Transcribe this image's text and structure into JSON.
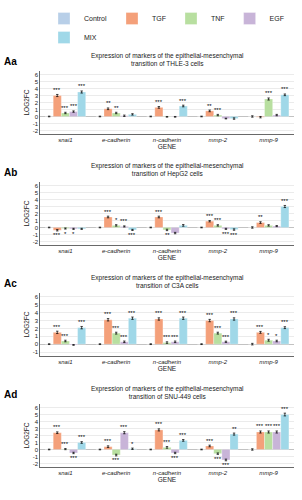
{
  "chart_data": [
    {
      "type": "bar",
      "label": "Aa",
      "title": "Expression of markers of the epithelial-mesenchymal transition of THLE-3 cells",
      "xlabel": "GENE",
      "ylabel": "LOG2FC",
      "categories": [
        "snai1",
        "e-cadherin",
        "n-cadherin",
        "mmp-2",
        "mmp-9"
      ],
      "series": [
        {
          "name": "Control",
          "color": "#b8cfe8",
          "values": [
            0,
            0,
            0,
            0,
            0
          ],
          "errors": [
            0.05,
            0.05,
            0.05,
            0.05,
            0.1
          ]
        },
        {
          "name": "TGF",
          "color": "#f4a07a",
          "values": [
            3.0,
            1.1,
            1.3,
            0.8,
            -0.1
          ],
          "errors": [
            0.15,
            0.12,
            0.12,
            0.12,
            0.1
          ],
          "annotations": [
            "***",
            "**",
            "***",
            "**",
            null
          ]
        },
        {
          "name": "TNF",
          "color": "#b8dfa0",
          "values": [
            0.5,
            0.5,
            -0.05,
            0.2,
            2.5
          ],
          "errors": [
            0.1,
            0.1,
            0.05,
            0.1,
            0.15
          ],
          "annotations": [
            "***",
            "**",
            null,
            "***",
            "***"
          ]
        },
        {
          "name": "EGF",
          "color": "#c8b4d8",
          "values": [
            0.7,
            0.1,
            -0.05,
            -0.3,
            0.2
          ],
          "errors": [
            0.1,
            0.1,
            0.05,
            0.05,
            0.1
          ],
          "annotations": [
            "***",
            null,
            null,
            null,
            null
          ]
        },
        {
          "name": "MIX",
          "color": "#a0d8e8",
          "values": [
            3.5,
            0.3,
            1.5,
            -0.3,
            3.1
          ],
          "errors": [
            0.15,
            0.1,
            0.12,
            0.1,
            0.12
          ],
          "annotations": [
            "***",
            null,
            "***",
            null,
            "***"
          ]
        }
      ],
      "ylim": [
        -2.5,
        6.5
      ],
      "yticks": [
        -2,
        -1,
        0,
        1,
        2,
        3,
        4,
        5,
        6
      ],
      "grid": true,
      "legend": "top"
    },
    {
      "type": "bar",
      "label": "Ab",
      "title": "Expression of markers of the epithelial-mesenchymal transition of HepG2 cells",
      "xlabel": "GENE",
      "ylabel": "LOG2FC",
      "categories": [
        "snai1",
        "e-cadherin",
        "n-cadherin",
        "mmp-2",
        "mmp-9"
      ],
      "series": [
        {
          "name": "Control",
          "color": "#b8cfe8",
          "values": [
            0,
            0,
            0,
            0,
            0
          ],
          "errors": [
            0.05,
            0.05,
            0.05,
            0.05,
            0.1
          ]
        },
        {
          "name": "TGF",
          "color": "#f4a07a",
          "values": [
            -0.4,
            1.5,
            1.5,
            0.9,
            0.7
          ],
          "errors": [
            0.1,
            0.12,
            0.12,
            0.1,
            0.12
          ],
          "annotations": [
            "***",
            "***",
            "***",
            "***",
            "**"
          ]
        },
        {
          "name": "TNF",
          "color": "#b8dfa0",
          "values": [
            -0.15,
            0.3,
            -0.35,
            0.3,
            0.3
          ],
          "errors": [
            0.08,
            0.1,
            0.1,
            0.1,
            0.1
          ],
          "annotations": [
            "*",
            "*",
            "**",
            "***",
            null
          ]
        },
        {
          "name": "EGF",
          "color": "#c8b4d8",
          "values": [
            -0.2,
            0.15,
            -0.8,
            -0.2,
            0.2
          ],
          "errors": [
            0.08,
            0.08,
            0.1,
            0.08,
            0.08
          ],
          "annotations": [
            "*",
            "***",
            null,
            "***",
            null
          ]
        },
        {
          "name": "MIX",
          "color": "#a0d8e8",
          "values": [
            -0.2,
            -0.35,
            0.3,
            -0.3,
            3.0
          ],
          "errors": [
            0.08,
            0.08,
            0.12,
            0.1,
            0.15
          ],
          "annotations": [
            null,
            "***",
            null,
            "***",
            "***"
          ]
        }
      ],
      "ylim": [
        -2.5,
        6.5
      ],
      "yticks": [
        -2,
        -1,
        0,
        1,
        2,
        3,
        4,
        5,
        6
      ],
      "grid": true,
      "legend": "top"
    },
    {
      "type": "bar",
      "label": "Ac",
      "title": "Expression of markers of the epithelial-mesenchymal transition of C3A cells",
      "xlabel": "GENE",
      "ylabel": "LOG2FC",
      "categories": [
        "snai1",
        "e-cadherin",
        "n-cadherin",
        "mmp-2",
        "mmp-9"
      ],
      "series": [
        {
          "name": "Control",
          "color": "#b8cfe8",
          "values": [
            0,
            0,
            0,
            0,
            0
          ],
          "errors": [
            0.05,
            0.05,
            0.05,
            0.05,
            0.1
          ]
        },
        {
          "name": "TGF",
          "color": "#f4a07a",
          "values": [
            1.5,
            3.1,
            3.2,
            3.0,
            1.5
          ],
          "errors": [
            0.15,
            0.15,
            0.15,
            0.15,
            0.12
          ],
          "annotations": [
            "***",
            "***",
            "***",
            "***",
            "***"
          ]
        },
        {
          "name": "TNF",
          "color": "#b8dfa0",
          "values": [
            0.4,
            1.4,
            0.2,
            1.4,
            0.5
          ],
          "errors": [
            0.1,
            0.12,
            0.1,
            0.12,
            0.12
          ],
          "annotations": [
            "***",
            "***",
            "***",
            "***",
            "*"
          ]
        },
        {
          "name": "EGF",
          "color": "#c8b4d8",
          "values": [
            -0.1,
            0.3,
            0.3,
            0.3,
            0.4
          ],
          "errors": [
            0.05,
            0.1,
            0.1,
            0.08,
            0.1
          ],
          "annotations": [
            null,
            "***",
            "***",
            "***",
            "*"
          ]
        },
        {
          "name": "MIX",
          "color": "#a0d8e8",
          "values": [
            2.1,
            3.3,
            3.3,
            3.2,
            2.1
          ],
          "errors": [
            0.15,
            0.15,
            0.15,
            0.15,
            0.12
          ],
          "annotations": [
            "***",
            "***",
            "***",
            "***",
            "***"
          ]
        }
      ],
      "ylim": [
        -1.5,
        6.5
      ],
      "yticks": [
        -1,
        0,
        1,
        2,
        3,
        4,
        5,
        6
      ],
      "grid": true,
      "legend": "top"
    },
    {
      "type": "bar",
      "label": "Ad",
      "title": "Expression of markers of the epithelial-mesenchymal transition of SNU-449 cells",
      "xlabel": "GENE",
      "ylabel": "LOG2FC",
      "categories": [
        "snai1",
        "e-cadherin",
        "n-cadherin",
        "mmp-2",
        "mmp-9"
      ],
      "series": [
        {
          "name": "Control",
          "color": "#b8cfe8",
          "values": [
            0,
            0,
            0,
            0,
            0
          ],
          "errors": [
            0.05,
            0.05,
            0.05,
            0.05,
            0.1
          ]
        },
        {
          "name": "TGF",
          "color": "#f4a07a",
          "values": [
            2.4,
            0.4,
            2.8,
            0.5,
            2.5
          ],
          "errors": [
            0.12,
            0.12,
            0.15,
            0.12,
            0.15
          ],
          "annotations": [
            "***",
            "***",
            "***",
            "***",
            "***"
          ]
        },
        {
          "name": "TNF",
          "color": "#b8dfa0",
          "values": [
            0.05,
            -0.8,
            0.3,
            -0.6,
            2.5
          ],
          "errors": [
            0.08,
            0.12,
            0.12,
            0.1,
            0.15
          ],
          "annotations": [
            "***",
            "***",
            "***",
            "***",
            "***"
          ]
        },
        {
          "name": "EGF",
          "color": "#c8b4d8",
          "values": [
            -0.5,
            2.4,
            -0.5,
            -1.5,
            2.5
          ],
          "errors": [
            0.1,
            0.15,
            0.1,
            0.12,
            0.15
          ],
          "annotations": [
            "***",
            "***",
            "***",
            "***",
            "***"
          ]
        },
        {
          "name": "MIX",
          "color": "#a0d8e8",
          "values": [
            1.0,
            0.1,
            1.3,
            2.2,
            5.0
          ],
          "errors": [
            0.12,
            0.1,
            0.12,
            0.15,
            0.2
          ],
          "annotations": [
            "***",
            "*",
            "***",
            "**",
            "***"
          ]
        }
      ],
      "ylim": [
        -2.5,
        6.5
      ],
      "yticks": [
        -2,
        -1,
        0,
        1,
        2,
        3,
        4,
        5,
        6
      ],
      "grid": true,
      "legend": "top"
    }
  ]
}
